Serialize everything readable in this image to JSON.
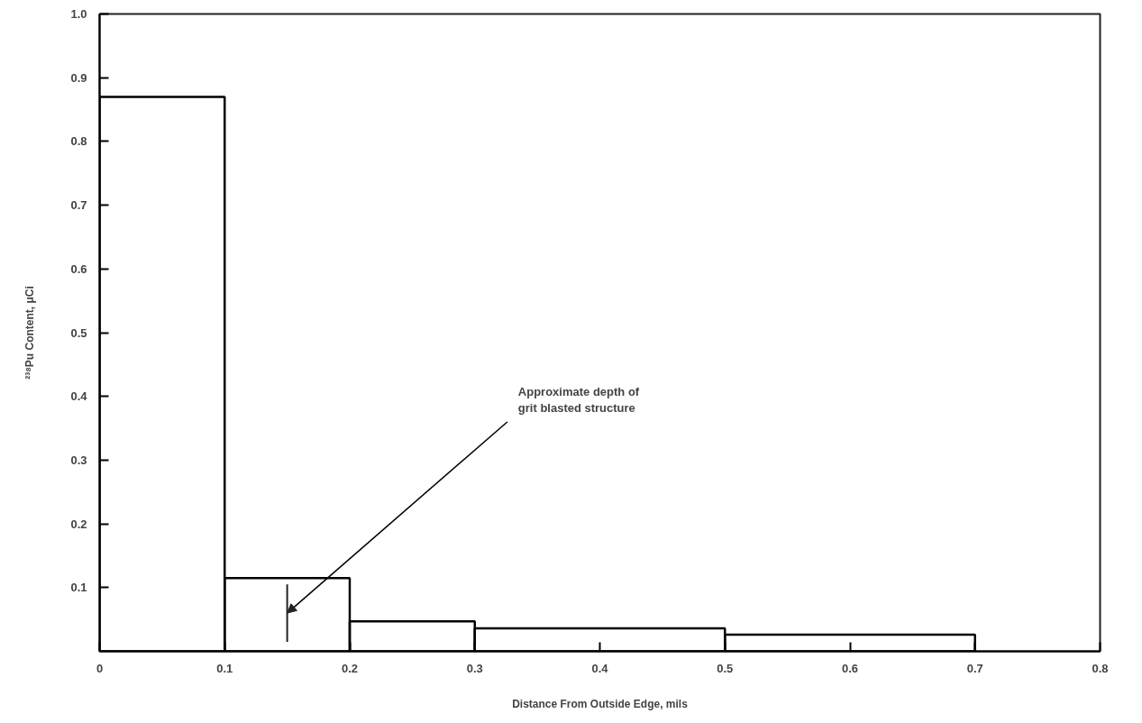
{
  "chart_data": {
    "type": "histogram",
    "xlabel": "Distance From Outside Edge, mils",
    "ylabel": "²³⁸Pu Content, μCi",
    "bins": [
      0,
      0.1,
      0.2,
      0.3,
      0.5,
      0.7
    ],
    "values": [
      0.87,
      0.115,
      0.047,
      0.036,
      0.026
    ],
    "color": "#000000",
    "xlim": [
      0,
      0.8
    ],
    "ylim": [
      0,
      1.0
    ],
    "xticks": [
      0,
      0.1,
      0.2,
      0.3,
      0.4,
      0.5,
      0.6,
      0.7,
      0.8
    ],
    "yticks": [
      0.1,
      0.2,
      0.3,
      0.4,
      0.5,
      0.6,
      0.7,
      0.8,
      0.9,
      {
        "value": 1.0,
        "label": "1.0"
      }
    ],
    "ref_lines": [
      {
        "axis": "x",
        "value": 0.15,
        "label": "Approximate depth of\ngrit blasted structure",
        "color": "#222222"
      }
    ],
    "grid": false
  }
}
